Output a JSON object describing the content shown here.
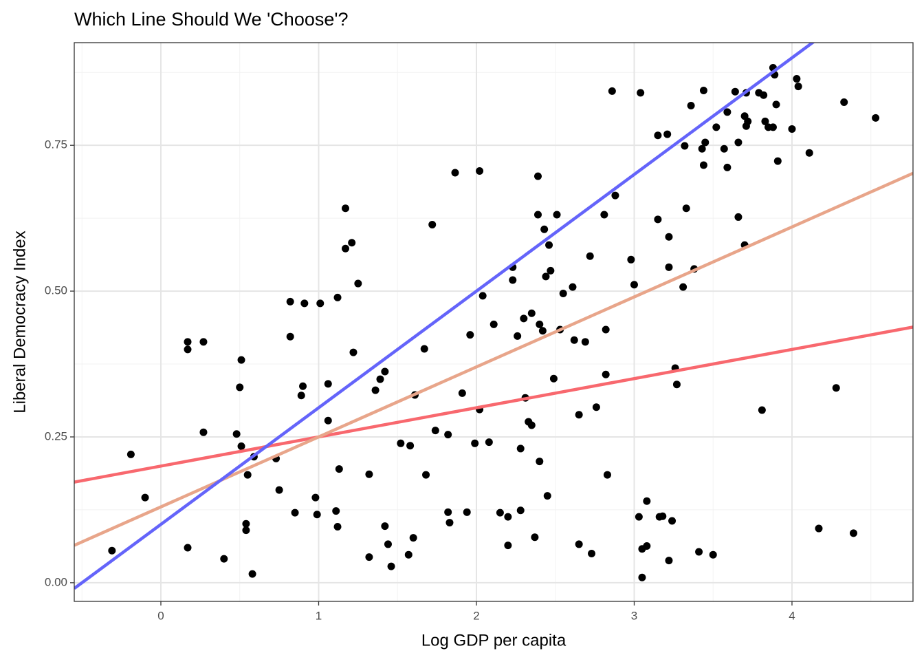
{
  "chart_data": {
    "type": "scatter",
    "title": "Which Line Should We 'Choose'?",
    "x_label": "Log GDP per capita",
    "y_label": "Liberal Democracy Index",
    "xlim": [
      -0.549,
      4.767
    ],
    "ylim": [
      -0.032,
      0.926
    ],
    "xticks": [
      0,
      1,
      2,
      3,
      4
    ],
    "yticks": [
      {
        "value": 0,
        "label": "0.00"
      },
      0.25,
      {
        "value": 0.5,
        "label": "0.50"
      },
      0.75
    ],
    "grid": true,
    "minor_grid": true,
    "series": [
      {
        "color": "#000000",
        "x": [
          -0.31,
          -0.19,
          -0.1,
          0.17,
          0.17,
          0.17,
          0.27,
          0.27,
          0.4,
          0.48,
          0.5,
          0.51,
          0.51,
          0.55,
          0.54,
          0.54,
          0.58,
          0.59,
          0.73,
          0.75,
          0.82,
          0.82,
          0.85,
          0.9,
          0.89,
          0.91,
          0.98,
          0.99,
          1.01,
          1.06,
          1.06,
          1.11,
          1.12,
          1.12,
          1.13,
          1.17,
          1.17,
          1.21,
          1.22,
          1.25,
          1.32,
          1.32,
          1.36,
          1.39,
          1.42,
          1.42,
          1.44,
          1.46,
          1.52,
          1.57,
          1.58,
          1.6,
          1.61,
          1.67,
          1.68,
          1.72,
          1.74,
          1.82,
          1.82,
          1.83,
          1.865,
          1.91,
          1.94,
          1.96,
          1.99,
          2.02,
          2.02,
          2.04,
          2.08,
          2.11,
          2.15,
          2.2,
          2.2,
          2.23,
          2.23,
          2.26,
          2.28,
          2.28,
          2.3,
          2.31,
          2.33,
          2.35,
          2.35,
          2.37,
          2.39,
          2.39,
          2.4,
          2.4,
          2.42,
          2.43,
          2.44,
          2.45,
          2.46,
          2.47,
          2.49,
          2.51,
          2.53,
          2.55,
          2.61,
          2.62,
          2.65,
          2.65,
          2.69,
          2.72,
          2.73,
          2.76,
          2.81,
          2.82,
          2.82,
          2.83,
          2.86,
          2.88,
          2.98,
          3.0,
          3.03,
          3.04,
          3.05,
          3.05,
          3.08,
          3.08,
          3.15,
          3.15,
          3.16,
          3.18,
          3.21,
          3.22,
          3.22,
          3.22,
          3.24,
          3.26,
          3.27,
          3.31,
          3.32,
          3.33,
          3.36,
          3.38,
          3.41,
          3.43,
          3.44,
          3.44,
          3.45,
          3.5,
          3.52,
          3.57,
          3.59,
          3.59,
          3.64,
          3.66,
          3.66,
          3.7,
          3.7,
          3.71,
          3.71,
          3.72,
          3.79,
          3.81,
          3.82,
          3.83,
          3.85,
          3.88,
          3.88,
          3.89,
          3.9,
          3.91,
          4.0,
          4.03,
          4.04,
          4.11,
          4.17,
          4.28,
          4.33,
          4.39,
          4.53
        ],
        "values": [
          0.055,
          0.22,
          0.146,
          0.413,
          0.4,
          0.06,
          0.413,
          0.258,
          0.041,
          0.255,
          0.335,
          0.234,
          0.382,
          0.185,
          0.101,
          0.09,
          0.015,
          0.216,
          0.213,
          0.159,
          0.422,
          0.482,
          0.12,
          0.337,
          0.321,
          0.479,
          0.146,
          0.117,
          0.479,
          0.341,
          0.278,
          0.123,
          0.096,
          0.489,
          0.195,
          0.573,
          0.642,
          0.583,
          0.395,
          0.513,
          0.186,
          0.044,
          0.33,
          0.349,
          0.362,
          0.097,
          0.066,
          0.028,
          0.239,
          0.048,
          0.235,
          0.077,
          0.322,
          0.401,
          0.185,
          0.614,
          0.261,
          0.254,
          0.121,
          0.103,
          0.703,
          0.325,
          0.121,
          0.425,
          0.239,
          0.297,
          0.706,
          0.492,
          0.241,
          0.443,
          0.12,
          0.113,
          0.064,
          0.541,
          0.519,
          0.423,
          0.124,
          0.23,
          0.453,
          0.317,
          0.276,
          0.462,
          0.27,
          0.078,
          0.631,
          0.697,
          0.443,
          0.208,
          0.432,
          0.606,
          0.525,
          0.149,
          0.579,
          0.535,
          0.35,
          0.631,
          0.434,
          0.496,
          0.507,
          0.416,
          0.288,
          0.066,
          0.413,
          0.56,
          0.05,
          0.301,
          0.631,
          0.357,
          0.434,
          0.185,
          0.843,
          0.664,
          0.554,
          0.511,
          0.113,
          0.84,
          0.058,
          0.009,
          0.14,
          0.063,
          0.767,
          0.623,
          0.113,
          0.114,
          0.769,
          0.593,
          0.541,
          0.038,
          0.106,
          0.368,
          0.34,
          0.507,
          0.749,
          0.642,
          0.818,
          0.538,
          0.053,
          0.744,
          0.716,
          0.844,
          0.755,
          0.048,
          0.781,
          0.744,
          0.712,
          0.807,
          0.842,
          0.755,
          0.627,
          0.579,
          0.8,
          0.84,
          0.783,
          0.791,
          0.84,
          0.296,
          0.836,
          0.791,
          0.781,
          0.781,
          0.883,
          0.871,
          0.82,
          0.723,
          0.778,
          0.864,
          0.851,
          0.737,
          0.093,
          0.334,
          0.824,
          0.085,
          0.797
        ]
      }
    ],
    "lines": [
      {
        "color": "#f8686e",
        "intercept": 0.2,
        "slope": 0.05
      },
      {
        "color": "#e8a58a",
        "intercept": 0.13,
        "slope": 0.12
      },
      {
        "color": "#6464fa",
        "intercept": 0.1,
        "slope": 0.2
      }
    ]
  }
}
